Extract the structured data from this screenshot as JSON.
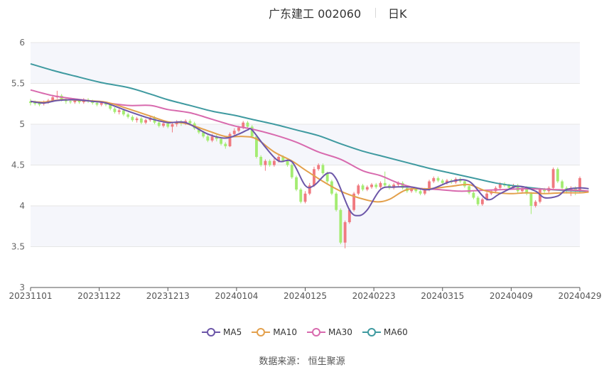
{
  "header": {
    "title": "广东建工 002060",
    "period": "日K"
  },
  "footer": {
    "source_label": "数据来源：",
    "source_value": "恒生聚源"
  },
  "colors": {
    "up": "#f07a80",
    "down": "#a4ec72",
    "ma5": "#6c56a8",
    "ma10": "#e3a04c",
    "ma30": "#d86aae",
    "ma60": "#3f9aa0",
    "band": "#f5f6fb",
    "grid": "#e6e6e6",
    "axis": "#555555"
  },
  "chart_data": {
    "type": "candlestick",
    "x_tick_labels": [
      "20231101",
      "20231122",
      "20231213",
      "20240104",
      "20240125",
      "20240223",
      "20240315",
      "20240409",
      "20240429"
    ],
    "y_tick_labels": [
      "3",
      "3.5",
      "4",
      "4.5",
      "5",
      "5.5",
      "6"
    ],
    "ylim": [
      3,
      6
    ],
    "grid": true,
    "legend_position": "bottom",
    "legend": [
      "MA5",
      "MA10",
      "MA30",
      "MA60"
    ],
    "candles": [
      [
        5.28,
        5.26,
        5.31,
        5.23
      ],
      [
        5.27,
        5.25,
        5.29,
        5.23
      ],
      [
        5.26,
        5.24,
        5.28,
        5.22
      ],
      [
        5.25,
        5.27,
        5.29,
        5.23
      ],
      [
        5.27,
        5.29,
        5.31,
        5.25
      ],
      [
        5.29,
        5.33,
        5.36,
        5.27
      ],
      [
        5.33,
        5.35,
        5.41,
        5.31
      ],
      [
        5.35,
        5.3,
        5.37,
        5.28
      ],
      [
        5.3,
        5.28,
        5.32,
        5.25
      ],
      [
        5.28,
        5.27,
        5.3,
        5.25
      ],
      [
        5.27,
        5.29,
        5.31,
        5.25
      ],
      [
        5.29,
        5.27,
        5.31,
        5.25
      ],
      [
        5.27,
        5.3,
        5.32,
        5.25
      ],
      [
        5.3,
        5.28,
        5.32,
        5.26
      ],
      [
        5.28,
        5.26,
        5.3,
        5.24
      ],
      [
        5.26,
        5.24,
        5.28,
        5.22
      ],
      [
        5.24,
        5.26,
        5.28,
        5.22
      ],
      [
        5.26,
        5.24,
        5.28,
        5.22
      ],
      [
        5.24,
        5.19,
        5.26,
        5.17
      ],
      [
        5.19,
        5.15,
        5.21,
        5.13
      ],
      [
        5.15,
        5.17,
        5.19,
        5.12
      ],
      [
        5.17,
        5.12,
        5.19,
        5.1
      ],
      [
        5.12,
        5.09,
        5.14,
        5.07
      ],
      [
        5.09,
        5.05,
        5.11,
        5.03
      ],
      [
        5.05,
        5.07,
        5.09,
        5.02
      ],
      [
        5.07,
        5.02,
        5.09,
        5.0
      ],
      [
        5.02,
        5.05,
        5.07,
        5.0
      ],
      [
        5.05,
        5.08,
        5.1,
        5.03
      ],
      [
        5.08,
        5.02,
        5.1,
        5.0
      ],
      [
        5.02,
        4.98,
        5.04,
        4.96
      ],
      [
        4.98,
        5.01,
        5.03,
        4.96
      ],
      [
        5.01,
        4.97,
        5.03,
        4.95
      ],
      [
        4.97,
        5.0,
        5.02,
        4.9
      ],
      [
        5.0,
        5.03,
        5.05,
        4.97
      ],
      [
        5.03,
        5.01,
        5.05,
        4.98
      ],
      [
        5.01,
        5.04,
        5.06,
        4.99
      ],
      [
        5.04,
        5.01,
        5.06,
        4.99
      ],
      [
        5.01,
        4.95,
        5.03,
        4.93
      ],
      [
        4.95,
        4.9,
        4.97,
        4.88
      ],
      [
        4.9,
        4.85,
        4.92,
        4.83
      ],
      [
        4.85,
        4.8,
        4.87,
        4.78
      ],
      [
        4.8,
        4.85,
        4.88,
        4.78
      ],
      [
        4.85,
        4.82,
        4.87,
        4.79
      ],
      [
        4.82,
        4.76,
        4.84,
        4.74
      ],
      [
        4.76,
        4.73,
        4.78,
        4.7
      ],
      [
        4.73,
        4.88,
        4.9,
        4.72
      ],
      [
        4.88,
        4.92,
        4.95,
        4.86
      ],
      [
        4.92,
        4.96,
        4.98,
        4.9
      ],
      [
        4.96,
        5.02,
        5.04,
        4.94
      ],
      [
        5.02,
        4.97,
        5.04,
        4.95
      ],
      [
        4.97,
        4.85,
        4.99,
        4.83
      ],
      [
        4.85,
        4.6,
        4.87,
        4.58
      ],
      [
        4.6,
        4.5,
        4.62,
        4.48
      ],
      [
        4.5,
        4.55,
        4.57,
        4.43
      ],
      [
        4.55,
        4.5,
        4.57,
        4.48
      ],
      [
        4.5,
        4.55,
        4.58,
        4.48
      ],
      [
        4.55,
        4.6,
        4.62,
        4.53
      ],
      [
        4.6,
        4.55,
        4.62,
        4.53
      ],
      [
        4.55,
        4.5,
        4.57,
        4.48
      ],
      [
        4.5,
        4.35,
        4.52,
        4.33
      ],
      [
        4.35,
        4.2,
        4.37,
        4.18
      ],
      [
        4.2,
        4.05,
        4.22,
        4.03
      ],
      [
        4.05,
        4.15,
        4.18,
        4.03
      ],
      [
        4.15,
        4.25,
        4.28,
        4.13
      ],
      [
        4.25,
        4.45,
        4.48,
        4.23
      ],
      [
        4.45,
        4.5,
        4.52,
        4.43
      ],
      [
        4.5,
        4.4,
        4.52,
        4.38
      ],
      [
        4.4,
        4.3,
        4.42,
        4.28
      ],
      [
        4.3,
        4.15,
        4.32,
        4.13
      ],
      [
        4.15,
        3.95,
        4.17,
        3.93
      ],
      [
        3.95,
        3.55,
        3.97,
        3.53
      ],
      [
        3.55,
        3.8,
        3.82,
        3.48
      ],
      [
        3.8,
        3.95,
        3.97,
        3.78
      ],
      [
        3.95,
        4.15,
        4.17,
        3.93
      ],
      [
        4.15,
        4.25,
        4.27,
        4.13
      ],
      [
        4.25,
        4.2,
        4.27,
        4.18
      ],
      [
        4.2,
        4.23,
        4.25,
        4.18
      ],
      [
        4.23,
        4.26,
        4.28,
        4.21
      ],
      [
        4.26,
        4.23,
        4.28,
        4.21
      ],
      [
        4.23,
        4.28,
        4.3,
        4.21
      ],
      [
        4.28,
        4.25,
        4.42,
        4.23
      ],
      [
        4.25,
        4.22,
        4.27,
        4.2
      ],
      [
        4.22,
        4.26,
        4.28,
        4.2
      ],
      [
        4.26,
        4.28,
        4.3,
        4.24
      ],
      [
        4.28,
        4.22,
        4.3,
        4.2
      ],
      [
        4.22,
        4.18,
        4.24,
        4.16
      ],
      [
        4.18,
        4.21,
        4.23,
        4.16
      ],
      [
        4.21,
        4.18,
        4.23,
        4.16
      ],
      [
        4.18,
        4.15,
        4.2,
        4.13
      ],
      [
        4.15,
        4.2,
        4.22,
        4.13
      ],
      [
        4.2,
        4.3,
        4.32,
        4.18
      ],
      [
        4.3,
        4.34,
        4.36,
        4.28
      ],
      [
        4.34,
        4.31,
        4.36,
        4.29
      ],
      [
        4.31,
        4.28,
        4.33,
        4.26
      ],
      [
        4.28,
        4.31,
        4.33,
        4.26
      ],
      [
        4.31,
        4.29,
        4.33,
        4.27
      ],
      [
        4.29,
        4.33,
        4.35,
        4.27
      ],
      [
        4.33,
        4.3,
        4.35,
        4.28
      ],
      [
        4.3,
        4.24,
        4.32,
        4.22
      ],
      [
        4.24,
        4.16,
        4.26,
        4.14
      ],
      [
        4.16,
        4.1,
        4.18,
        4.08
      ],
      [
        4.1,
        4.02,
        4.12,
        4.0
      ],
      [
        4.02,
        4.08,
        4.1,
        4.0
      ],
      [
        4.08,
        4.15,
        4.17,
        4.06
      ],
      [
        4.15,
        4.18,
        4.2,
        4.13
      ],
      [
        4.18,
        4.22,
        4.24,
        4.16
      ],
      [
        4.22,
        4.27,
        4.29,
        4.2
      ],
      [
        4.27,
        4.25,
        4.29,
        4.23
      ],
      [
        4.25,
        4.22,
        4.27,
        4.2
      ],
      [
        4.22,
        4.25,
        4.27,
        4.2
      ],
      [
        4.25,
        4.18,
        4.27,
        4.16
      ],
      [
        4.18,
        4.22,
        4.24,
        4.16
      ],
      [
        4.22,
        4.15,
        4.24,
        4.13
      ],
      [
        4.15,
        4.0,
        4.17,
        3.9
      ],
      [
        4.0,
        4.05,
        4.07,
        3.98
      ],
      [
        4.05,
        4.2,
        4.22,
        4.03
      ],
      [
        4.2,
        4.18,
        4.22,
        4.16
      ],
      [
        4.18,
        4.22,
        4.24,
        4.16
      ],
      [
        4.22,
        4.45,
        4.47,
        4.2
      ],
      [
        4.45,
        4.3,
        4.47,
        4.28
      ],
      [
        4.3,
        4.22,
        4.32,
        4.2
      ],
      [
        4.22,
        4.18,
        4.24,
        4.15
      ],
      [
        4.18,
        4.22,
        4.24,
        4.12
      ],
      [
        4.22,
        4.18,
        4.24,
        4.13
      ],
      [
        4.18,
        4.34,
        4.36,
        4.16
      ]
    ],
    "ma5": [
      [
        0,
        5.28
      ],
      [
        3,
        5.26
      ],
      [
        6,
        5.29
      ],
      [
        10,
        5.3
      ],
      [
        14,
        5.28
      ],
      [
        17,
        5.26
      ],
      [
        22,
        5.16
      ],
      [
        27,
        5.07
      ],
      [
        31,
        5.02
      ],
      [
        35,
        5.02
      ],
      [
        40,
        4.88
      ],
      [
        44,
        4.83
      ],
      [
        47,
        4.88
      ],
      [
        49,
        4.93
      ],
      [
        50,
        4.93
      ],
      [
        53,
        4.72
      ],
      [
        56,
        4.55
      ],
      [
        59,
        4.54
      ],
      [
        62,
        4.25
      ],
      [
        64,
        4.25
      ],
      [
        67,
        4.4
      ],
      [
        69,
        4.33
      ],
      [
        72,
        3.95
      ],
      [
        74,
        3.88
      ],
      [
        76,
        3.95
      ],
      [
        79,
        4.2
      ],
      [
        82,
        4.23
      ],
      [
        86,
        4.23
      ],
      [
        90,
        4.2
      ],
      [
        95,
        4.3
      ],
      [
        99,
        4.3
      ],
      [
        103,
        4.08
      ],
      [
        106,
        4.15
      ],
      [
        110,
        4.24
      ],
      [
        114,
        4.18
      ],
      [
        116,
        4.1
      ],
      [
        119,
        4.12
      ],
      [
        121,
        4.2
      ],
      [
        124,
        4.22
      ],
      [
        126,
        4.21
      ]
    ],
    "ma10": [
      [
        0,
        5.28
      ],
      [
        3,
        5.27
      ],
      [
        7,
        5.3
      ],
      [
        12,
        5.29
      ],
      [
        17,
        5.27
      ],
      [
        22,
        5.19
      ],
      [
        27,
        5.1
      ],
      [
        31,
        5.03
      ],
      [
        35,
        5.01
      ],
      [
        40,
        4.92
      ],
      [
        44,
        4.85
      ],
      [
        48,
        4.85
      ],
      [
        51,
        4.82
      ],
      [
        55,
        4.66
      ],
      [
        59,
        4.55
      ],
      [
        62,
        4.44
      ],
      [
        66,
        4.3
      ],
      [
        70,
        4.18
      ],
      [
        74,
        4.1
      ],
      [
        78,
        4.05
      ],
      [
        81,
        4.08
      ],
      [
        85,
        4.2
      ],
      [
        90,
        4.21
      ],
      [
        95,
        4.24
      ],
      [
        99,
        4.26
      ],
      [
        103,
        4.18
      ],
      [
        108,
        4.15
      ],
      [
        112,
        4.16
      ],
      [
        116,
        4.15
      ],
      [
        120,
        4.16
      ],
      [
        124,
        4.16
      ],
      [
        126,
        4.17
      ]
    ],
    "ma30": [
      [
        0,
        5.42
      ],
      [
        5,
        5.35
      ],
      [
        10,
        5.31
      ],
      [
        16,
        5.27
      ],
      [
        22,
        5.23
      ],
      [
        27,
        5.23
      ],
      [
        31,
        5.18
      ],
      [
        36,
        5.14
      ],
      [
        41,
        5.06
      ],
      [
        46,
        4.98
      ],
      [
        50,
        4.94
      ],
      [
        55,
        4.87
      ],
      [
        60,
        4.78
      ],
      [
        65,
        4.66
      ],
      [
        70,
        4.57
      ],
      [
        75,
        4.43
      ],
      [
        79,
        4.37
      ],
      [
        83,
        4.28
      ],
      [
        87,
        4.22
      ],
      [
        92,
        4.2
      ],
      [
        97,
        4.18
      ],
      [
        102,
        4.19
      ],
      [
        107,
        4.2
      ],
      [
        112,
        4.21
      ],
      [
        118,
        4.2
      ],
      [
        124,
        4.19
      ],
      [
        126,
        4.18
      ]
    ],
    "ma60": [
      [
        0,
        5.74
      ],
      [
        5,
        5.66
      ],
      [
        10,
        5.59
      ],
      [
        16,
        5.51
      ],
      [
        22,
        5.45
      ],
      [
        27,
        5.37
      ],
      [
        31,
        5.3
      ],
      [
        36,
        5.23
      ],
      [
        41,
        5.16
      ],
      [
        46,
        5.11
      ],
      [
        50,
        5.06
      ],
      [
        55,
        5.0
      ],
      [
        60,
        4.93
      ],
      [
        65,
        4.86
      ],
      [
        70,
        4.76
      ],
      [
        75,
        4.67
      ],
      [
        80,
        4.6
      ],
      [
        85,
        4.53
      ],
      [
        90,
        4.46
      ],
      [
        95,
        4.4
      ],
      [
        100,
        4.34
      ],
      [
        105,
        4.28
      ],
      [
        110,
        4.24
      ],
      [
        115,
        4.21
      ],
      [
        120,
        4.19
      ],
      [
        126,
        4.18
      ]
    ]
  }
}
